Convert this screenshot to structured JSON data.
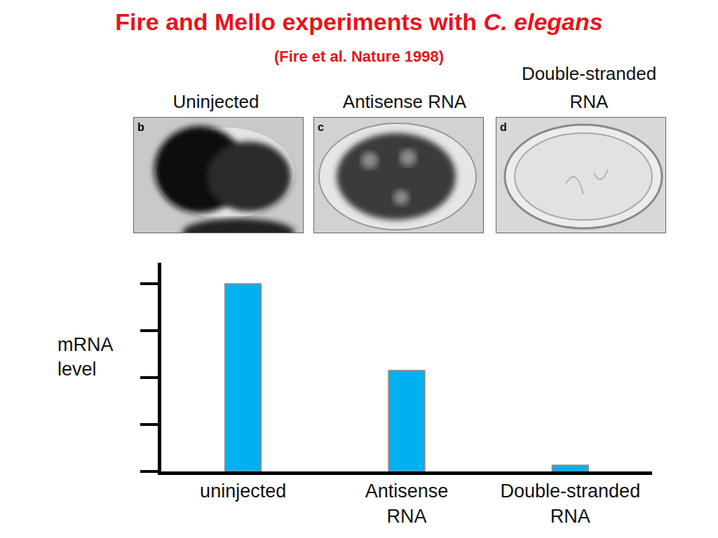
{
  "slide": {
    "title": {
      "text": "Fire and Mello experiments with C. elegans",
      "italic": "C. elegans"
    },
    "subtitle": "(Fire et al. Nature 1998)",
    "panels": [
      {
        "label": "Uninjected",
        "letter": "b"
      },
      {
        "label": "Antisense RNA",
        "letter": "c"
      },
      {
        "label": "Double-stranded RNA",
        "letter": "d"
      }
    ]
  },
  "chart_data": {
    "type": "bar",
    "y_label": "mRNA level",
    "categories": [
      "uninjected",
      "Antisense RNA",
      "Double-stranded RNA"
    ],
    "values": [
      4.0,
      2.15,
      0.13
    ],
    "color": "#00b0f0",
    "ylim": [
      0,
      4.45
    ],
    "yticks": [
      0,
      1,
      2,
      3,
      4
    ],
    "tick_labels": "x",
    "grid": false
  }
}
